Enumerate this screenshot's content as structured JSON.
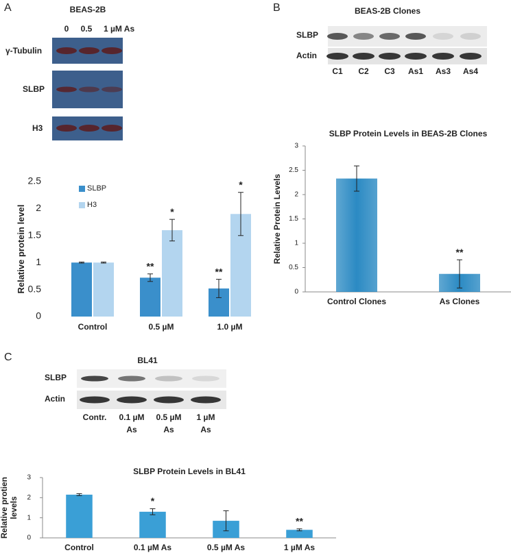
{
  "panels": [
    {
      "letter": "A",
      "title": "BEAS-2B",
      "lanes": [
        "0",
        "0.5",
        "1 µM As"
      ],
      "rows": [
        "γ-Tubulin",
        "SLBP",
        "H3"
      ]
    },
    {
      "letter": "B",
      "title": "BEAS-2B Clones",
      "rows": [
        "SLBP",
        "Actin"
      ],
      "lanes": [
        "C1",
        "C2",
        "C3",
        "As1",
        "As3",
        "As4"
      ]
    },
    {
      "letter": "C",
      "title": "BL41",
      "rows": [
        "SLBP",
        "Actin"
      ],
      "lanes": [
        [
          "Contr."
        ],
        [
          "0.1 µM",
          "As"
        ],
        [
          "0.5 µM",
          "As"
        ],
        [
          "1 µM",
          "As"
        ]
      ]
    }
  ],
  "chart_data": [
    {
      "type": "bar",
      "ylabel": [
        "Relative protein level"
      ],
      "categories": [
        "Control",
        "0.5 µM",
        "1.0 µM"
      ],
      "series": [
        {
          "name": "SLBP",
          "color": "#3a8fcb",
          "values": [
            1.0,
            0.72,
            0.52
          ],
          "errors": [
            0.01,
            0.07,
            0.17
          ],
          "annotations": [
            null,
            "**",
            "**"
          ]
        },
        {
          "name": "H3",
          "color": "#b3d5ef",
          "values": [
            1.0,
            1.6,
            1.9
          ],
          "errors": [
            0.01,
            0.2,
            0.4
          ],
          "annotations": [
            null,
            "*",
            "*"
          ]
        }
      ],
      "ylim": [
        0,
        2.5
      ],
      "yticks": [
        0,
        0.5,
        1,
        1.5,
        2,
        2.5
      ],
      "grid": false,
      "legend": "upper left",
      "axes": false
    },
    {
      "type": "bar",
      "title": "SLBP Protein Levels in BEAS-2B Clones",
      "ylabel": [
        "Relative Protein Levels"
      ],
      "categories": [
        "Control Clones",
        "As Clones"
      ],
      "series": [
        {
          "color": "#2b8ac3",
          "values": [
            2.33,
            0.37
          ],
          "errors": [
            0.26,
            0.29
          ],
          "annotations": [
            null,
            "**"
          ]
        }
      ],
      "ylim": [
        0,
        3
      ],
      "yticks": [
        0,
        0.5,
        1,
        1.5,
        2,
        2.5,
        3
      ],
      "grid": false,
      "axes": true
    },
    {
      "type": "bar",
      "title": "SLBP  Protein Levels in BL41",
      "ylabel": [
        "Relative protien",
        "levels"
      ],
      "categories": [
        "Control",
        "0.1 µM As",
        "0.5 µM As",
        "1 µM As"
      ],
      "series": [
        {
          "color": "#3a9fd6",
          "values": [
            2.15,
            1.3,
            0.85,
            0.4
          ],
          "errors": [
            0.05,
            0.15,
            0.5,
            0.05
          ],
          "annotations": [
            null,
            "*",
            null,
            "**"
          ]
        }
      ],
      "ylim": [
        0,
        3
      ],
      "yticks": [
        0,
        1,
        2,
        3
      ],
      "grid": false,
      "axes": true
    }
  ]
}
